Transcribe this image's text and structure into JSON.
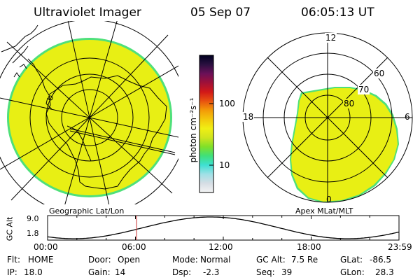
{
  "header": {
    "instrument": "Ultraviolet Imager",
    "date": "05 Sep 07",
    "time": "06:05:13 UT"
  },
  "colorbar": {
    "unit_label": "photon cm⁻²s⁻¹",
    "ticks": [
      "100",
      "10"
    ],
    "stops": [
      "#f4f4f4",
      "#d6dde4",
      "#9fe0e6",
      "#3ee0d2",
      "#3fe07a",
      "#80e028",
      "#cfe41e",
      "#f0ef14",
      "#f3c80c",
      "#f39a08",
      "#e85210",
      "#d21818",
      "#a01038",
      "#6a1058",
      "#2a1040",
      "#000020"
    ]
  },
  "left_map": {
    "caption": "Geographic Lat/Lon",
    "fill_color": "#e8ef14",
    "edge_color": "#4fe07a"
  },
  "right_map": {
    "caption": "Apex MLat/MLT",
    "mlt_labels": {
      "top": "12",
      "left": "18",
      "right": "6",
      "bottom": "0"
    },
    "lat_labels": [
      "60",
      "70",
      "80"
    ],
    "fill_color": "#e8ef14"
  },
  "altitude_plot": {
    "ylabel": "GC Alt",
    "yticks": [
      "9.0",
      "1.8"
    ],
    "xticks": [
      "00:00",
      "06:00",
      "12:00",
      "18:00",
      "23:59"
    ],
    "marker_time": "06:05",
    "marker_color": "#c83232"
  },
  "status": {
    "flt_label": "Flt:",
    "flt_value": "HOME",
    "ip_label": "IP:",
    "ip_value": "18.0",
    "door_label": "Door:",
    "door_value": "Open",
    "gain_label": "Gain:",
    "gain_value": "14",
    "mode_label": "Mode:",
    "mode_value": "Normal",
    "dsp_label": "Dsp:",
    "dsp_value": "-2.3",
    "gcalt_label": "GC Alt:",
    "gcalt_value": "7.5 Re",
    "seq_label": "Seq:",
    "seq_value": "39",
    "glat_label": "GLat:",
    "glat_value": "-86.5",
    "glon_label": "GLon:",
    "glon_value": "28.3"
  }
}
